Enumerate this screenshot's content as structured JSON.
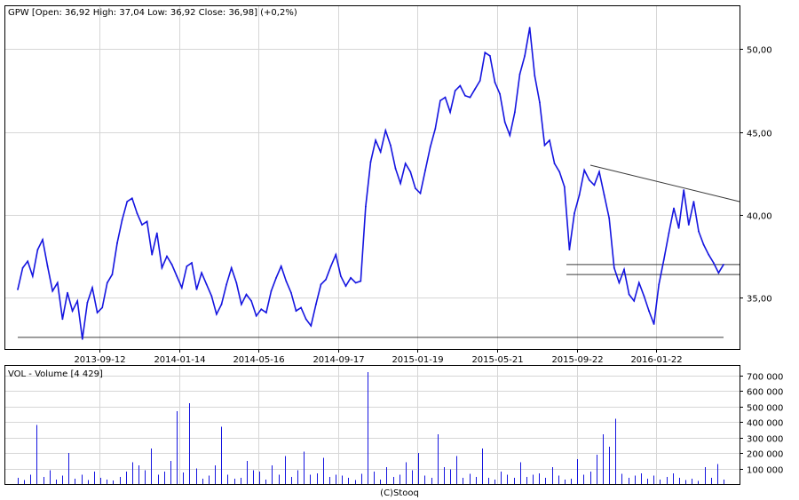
{
  "chart_data": [
    {
      "type": "line",
      "title": "GPW [Open: 36,92  High: 37,04  Low: 36,92  Close: 36,98] (+0,2%)",
      "x_tick_labels": [
        "2013-09-12",
        "2014-01-14",
        "2014-05-16",
        "2014-09-17",
        "2015-01-19",
        "2015-05-21",
        "2015-09-22",
        "2016-01-22"
      ],
      "y_tick_labels": [
        "50,00",
        "45,00",
        "40,00",
        "35,00"
      ],
      "y_ticks": [
        50,
        45,
        40,
        35
      ],
      "ylim": [
        31.9,
        52.6
      ],
      "grid": true,
      "series": [
        {
          "values": [
            35.5,
            36.8,
            37.2,
            36.3,
            37.9,
            38.5,
            36.9,
            35.4,
            35.9,
            33.7,
            35.3,
            34.2,
            34.8,
            32.5,
            34.7,
            35.6,
            34.1,
            34.4,
            35.9,
            36.4,
            38.3,
            39.7,
            40.8,
            41.0,
            40.1,
            39.4,
            39.6,
            37.6,
            38.9,
            36.8,
            37.5,
            37.0,
            36.3,
            35.6,
            36.9,
            37.1,
            35.5,
            36.5,
            35.8,
            35.1,
            34.0,
            34.6,
            35.8,
            36.8,
            35.9,
            34.6,
            35.2,
            34.8,
            33.9,
            34.3,
            34.1,
            35.4,
            36.2,
            36.9,
            36.0,
            35.3,
            34.2,
            34.4,
            33.7,
            33.3,
            34.6,
            35.8,
            36.1,
            36.9,
            37.6,
            36.3,
            35.7,
            36.2,
            35.9,
            36.0,
            40.5,
            43.2,
            44.5,
            43.8,
            45.1,
            44.2,
            42.8,
            41.9,
            43.1,
            42.6,
            41.6,
            41.3,
            42.7,
            44.1,
            45.2,
            46.9,
            47.1,
            46.2,
            47.5,
            47.8,
            47.2,
            47.1,
            47.6,
            48.1,
            49.8,
            49.6,
            48.0,
            47.3,
            45.6,
            44.8,
            46.2,
            48.5,
            49.6,
            51.3,
            48.4,
            46.8,
            44.2,
            44.5,
            43.1,
            42.6,
            41.7,
            37.9,
            40.1,
            41.2,
            42.7,
            42.1,
            41.8,
            42.6,
            41.2,
            39.8,
            36.8,
            35.9,
            36.7,
            35.2,
            34.8,
            35.9,
            35.1,
            34.2,
            33.4,
            35.8,
            37.3,
            38.9,
            40.4,
            39.2,
            41.5,
            39.4,
            40.8,
            39.0,
            38.2,
            37.6,
            37.1,
            36.5,
            37.0
          ]
        }
      ],
      "trend_lines": [
        {
          "from": [
            0.6,
            43.0
          ],
          "to": [
            1.0,
            40.8
          ]
        },
        {
          "from": [
            0.0,
            32.6
          ],
          "to": [
            1.0,
            32.6
          ]
        },
        {
          "from": [
            0.6,
            37.0
          ],
          "to": [
            1.0,
            37.0
          ]
        },
        {
          "from": [
            0.6,
            36.4
          ],
          "to": [
            1.0,
            36.4
          ]
        }
      ]
    },
    {
      "type": "bar",
      "title": "VOL - Volume [4 429]",
      "y_tick_labels": [
        "700 000",
        "600 000",
        "500 000",
        "400 000",
        "300 000",
        "200 000",
        "100 000"
      ],
      "y_ticks": [
        700000,
        600000,
        500000,
        400000,
        300000,
        200000,
        100000
      ],
      "ylim": [
        0,
        760000
      ],
      "grid": true,
      "values": [
        40000,
        25000,
        60000,
        380000,
        45000,
        90000,
        30000,
        55000,
        200000,
        35000,
        60000,
        25000,
        80000,
        40000,
        30000,
        22000,
        45000,
        80000,
        140000,
        120000,
        90000,
        230000,
        60000,
        80000,
        150000,
        470000,
        75000,
        520000,
        100000,
        35000,
        55000,
        120000,
        370000,
        60000,
        35000,
        40000,
        150000,
        90000,
        80000,
        30000,
        120000,
        60000,
        180000,
        45000,
        90000,
        210000,
        60000,
        70000,
        170000,
        45000,
        60000,
        55000,
        40000,
        25000,
        65000,
        720000,
        80000,
        30000,
        110000,
        45000,
        60000,
        140000,
        90000,
        200000,
        55000,
        40000,
        320000,
        110000,
        95000,
        180000,
        40000,
        65000,
        45000,
        230000,
        40000,
        30000,
        80000,
        60000,
        40000,
        140000,
        45000,
        60000,
        70000,
        40000,
        110000,
        55000,
        30000,
        35000,
        160000,
        60000,
        80000,
        190000,
        320000,
        240000,
        420000,
        65000,
        40000,
        55000,
        70000,
        35000,
        55000,
        30000,
        45000,
        70000,
        40000,
        25000,
        35000,
        20000,
        110000,
        40000,
        130000,
        30000
      ],
      "copyright": "(C)Stooq"
    }
  ]
}
